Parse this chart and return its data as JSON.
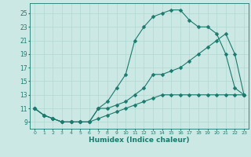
{
  "xlabel": "Humidex (Indice chaleur)",
  "bg_color": "#cce8e4",
  "line_color": "#1a7a6e",
  "grid_color": "#b0d8d0",
  "xlim": [
    -0.5,
    23.5
  ],
  "ylim": [
    8.0,
    26.5
  ],
  "xticks": [
    0,
    1,
    2,
    3,
    4,
    5,
    6,
    7,
    8,
    9,
    10,
    11,
    12,
    13,
    14,
    15,
    16,
    17,
    18,
    19,
    20,
    21,
    22,
    23
  ],
  "yticks": [
    9,
    11,
    13,
    15,
    17,
    19,
    21,
    23,
    25
  ],
  "line1_x": [
    0,
    1,
    2,
    3,
    4,
    5,
    6,
    7,
    8,
    9,
    10,
    11,
    12,
    13,
    14,
    15,
    16,
    17,
    18,
    19,
    20,
    21,
    22,
    23
  ],
  "line1_y": [
    11,
    10,
    9.5,
    9,
    9,
    9,
    9,
    11,
    12,
    14,
    16,
    21,
    23,
    24.5,
    25,
    25.5,
    25.5,
    24,
    23,
    23,
    22,
    19,
    14,
    13
  ],
  "line2_x": [
    0,
    1,
    2,
    3,
    4,
    5,
    6,
    7,
    8,
    9,
    10,
    11,
    12,
    13,
    14,
    15,
    16,
    17,
    18,
    19,
    20,
    21,
    22,
    23
  ],
  "line2_y": [
    11,
    10,
    9.5,
    9,
    9,
    9,
    9,
    11,
    11,
    11.5,
    12,
    13,
    14,
    16,
    16,
    16.5,
    17,
    18,
    19,
    20,
    21,
    22,
    19,
    13
  ],
  "line3_x": [
    0,
    1,
    2,
    3,
    4,
    5,
    6,
    7,
    8,
    9,
    10,
    11,
    12,
    13,
    14,
    15,
    16,
    17,
    18,
    19,
    20,
    21,
    22,
    23
  ],
  "line3_y": [
    11,
    10,
    9.5,
    9,
    9,
    9,
    9,
    9.5,
    10,
    10.5,
    11,
    11.5,
    12,
    12.5,
    13,
    13,
    13,
    13,
    13,
    13,
    13,
    13,
    13,
    13
  ]
}
